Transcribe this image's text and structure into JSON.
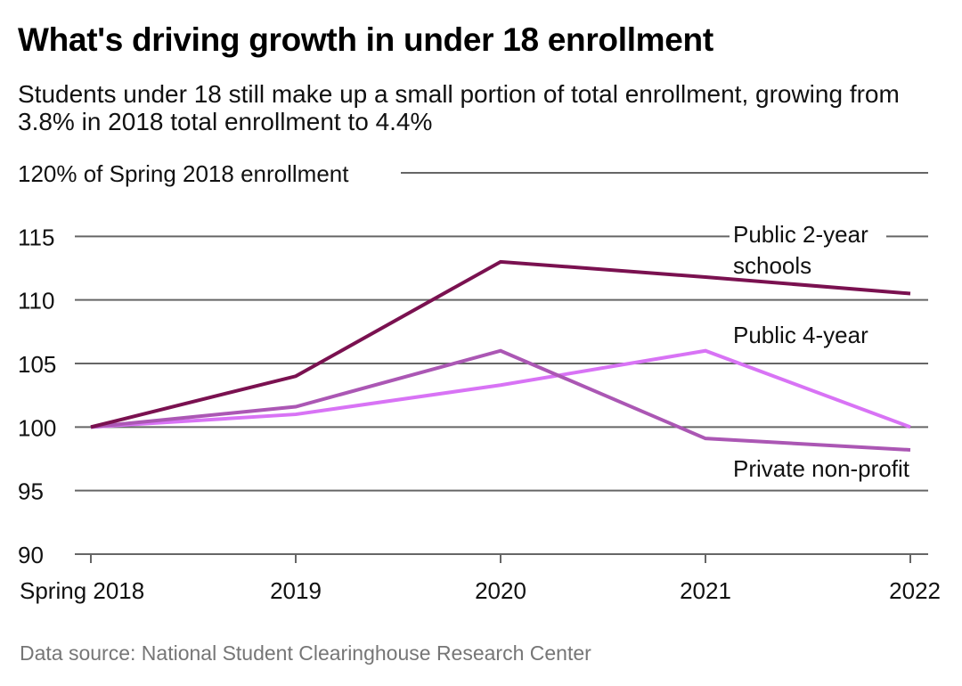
{
  "title": "What's driving growth in under 18 enrollment",
  "subtitle": "Students under 18 still make up a small portion of total enrollment, growing from 3.8% in 2018 total enrollment to 4.4%",
  "source": "Data source: National Student Clearinghouse Research Center",
  "chart_data": {
    "type": "line",
    "title": "What's driving growth in under 18 enrollment",
    "ylabel": "% of Spring 2018 enrollment",
    "top_tick_label": "120% of Spring 2018 enrollment",
    "x": [
      "Spring 2018",
      "2019",
      "2020",
      "2021",
      "2022"
    ],
    "ylim": [
      90,
      120
    ],
    "yticks": [
      90,
      95,
      100,
      105,
      110,
      115,
      120
    ],
    "grid": true,
    "series": [
      {
        "name": "Public 2-year schools",
        "label_lines": [
          "Public 2-year",
          "schools"
        ],
        "color": "#7a1150",
        "values": [
          100,
          104.0,
          113.0,
          111.8,
          110.5
        ]
      },
      {
        "name": "Public 4-year",
        "label_lines": [
          "Public 4-year"
        ],
        "color": "#d873f5",
        "values": [
          100,
          101.0,
          103.3,
          106.0,
          100.0
        ]
      },
      {
        "name": "Private non-profit",
        "label_lines": [
          "Private non-profit"
        ],
        "color": "#ab57b4",
        "values": [
          100,
          101.6,
          106.0,
          99.1,
          98.2
        ]
      }
    ]
  }
}
